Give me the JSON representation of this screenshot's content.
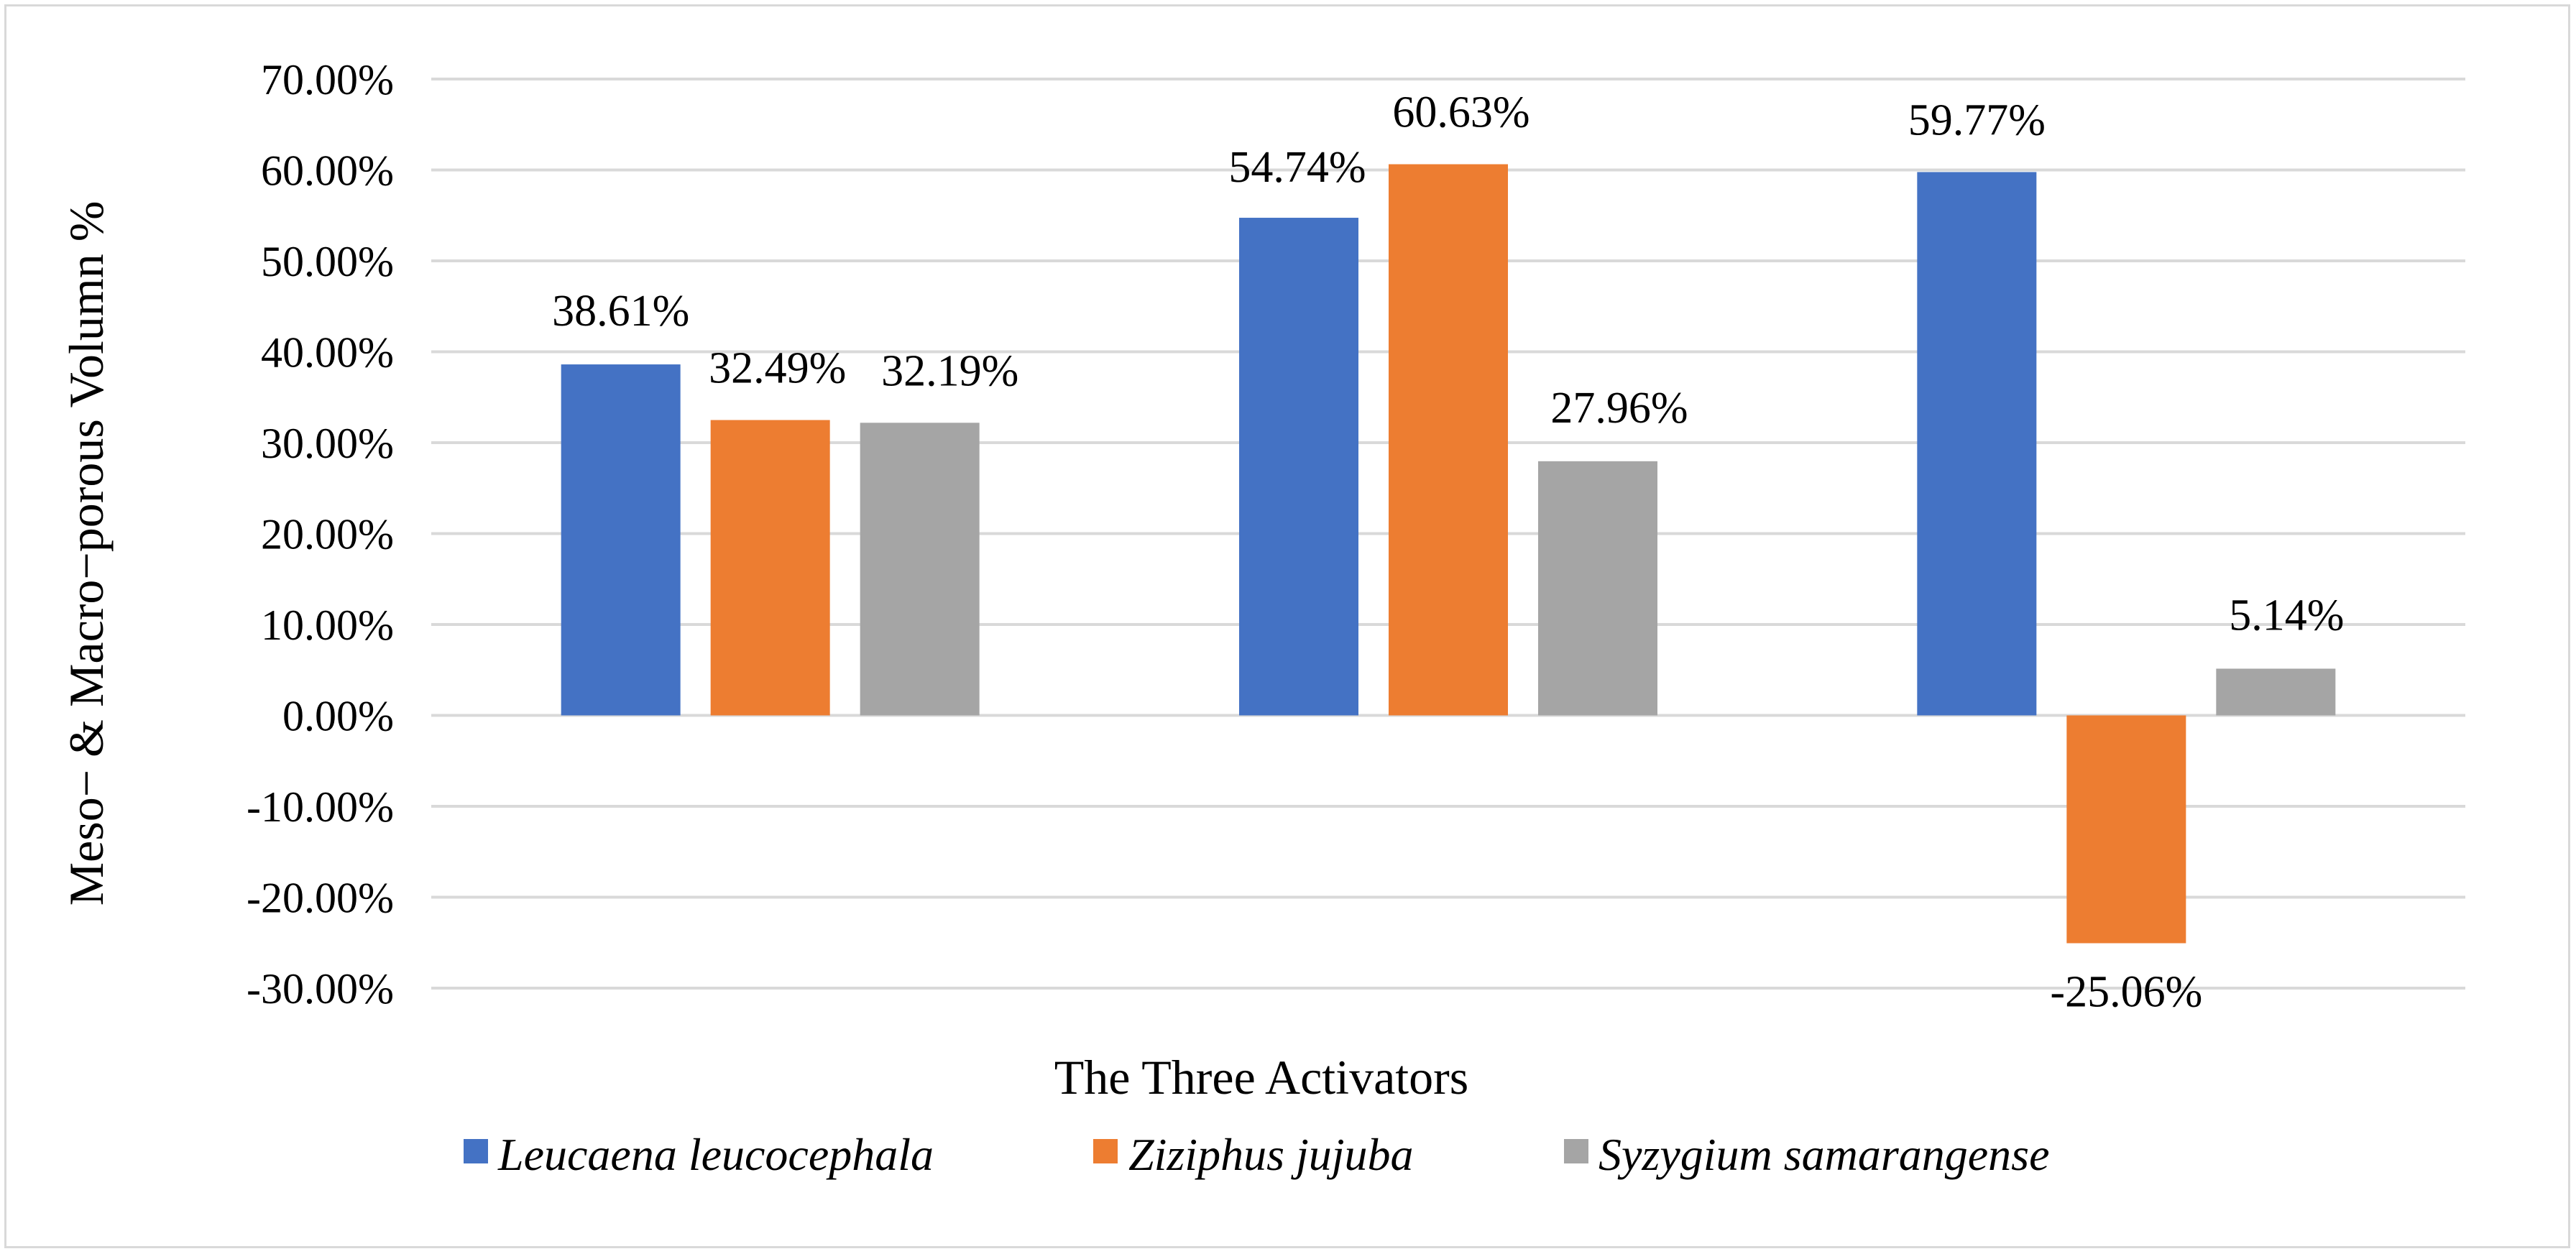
{
  "chart_data": {
    "type": "bar",
    "title": "",
    "xlabel": "The Three Activators",
    "ylabel": "Meso− & Macro−porous Volumn %",
    "ylim": [
      -30,
      70
    ],
    "ytick_step": 10,
    "ytick_labels": [
      "70.00%",
      "60.00%",
      "50.00%",
      "40.00%",
      "30.00%",
      "20.00%",
      "10.00%",
      "0.00%",
      "-10.00%",
      "-20.00%",
      "-30.00%"
    ],
    "grid": true,
    "legend_position": "bottom",
    "categories": [
      "",
      "",
      ""
    ],
    "series": [
      {
        "name": "Leucaena leucocephala",
        "color": "#4472c4",
        "values": [
          38.61,
          54.74,
          59.77
        ],
        "labels": [
          "38.61%",
          "54.74%",
          "59.77%"
        ]
      },
      {
        "name": "Ziziphus jujuba",
        "color": "#ed7d31",
        "values": [
          32.49,
          60.63,
          -25.06
        ],
        "labels": [
          "32.49%",
          "60.63%",
          "-25.06%"
        ]
      },
      {
        "name": "Syzygium samarangense",
        "color": "#a5a5a5",
        "values": [
          32.19,
          27.96,
          5.14
        ],
        "labels": [
          "32.19%",
          "27.96%",
          "5.14%"
        ]
      }
    ]
  }
}
